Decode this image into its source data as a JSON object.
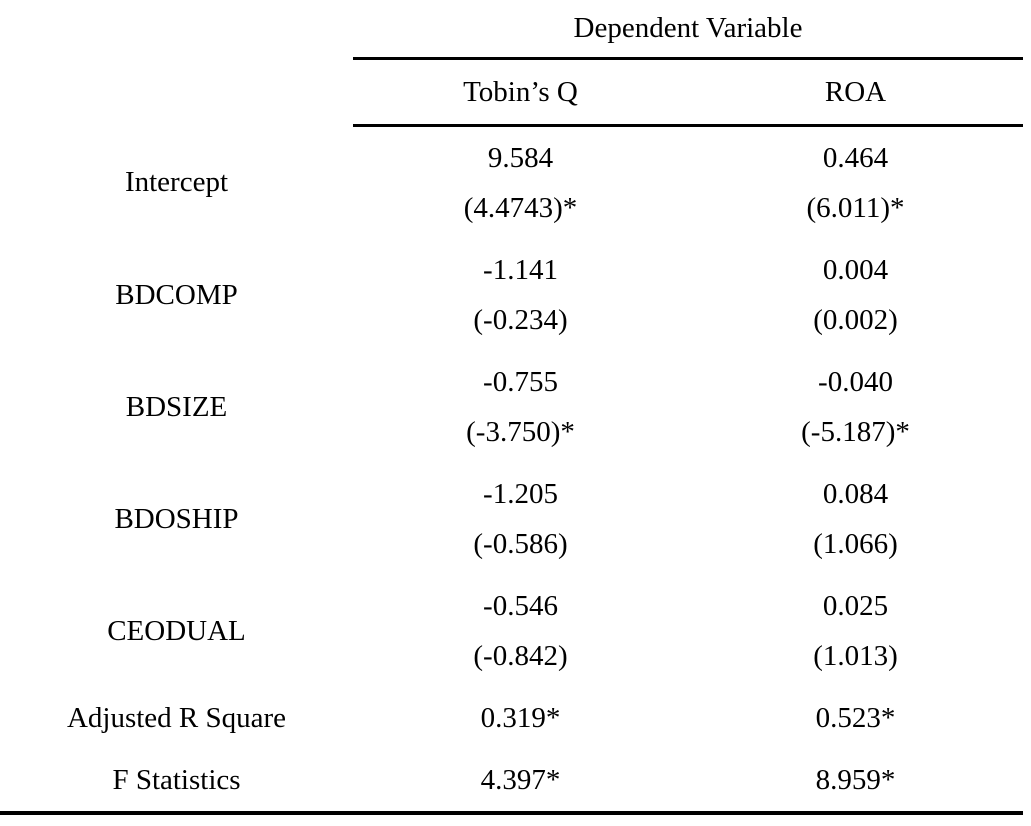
{
  "table": {
    "header": {
      "group_label": "Dependent Variable",
      "columns": [
        "Tobin’s Q",
        "ROA"
      ]
    },
    "rows": [
      {
        "label": "Intercept",
        "cells": [
          {
            "coef": "9.584",
            "tstat": "(4.4743)*"
          },
          {
            "coef": "0.464",
            "tstat": "(6.011)*"
          }
        ]
      },
      {
        "label": "BDCOMP",
        "cells": [
          {
            "coef": "-1.141",
            "tstat": "(-0.234)"
          },
          {
            "coef": "0.004",
            "tstat": "(0.002)"
          }
        ]
      },
      {
        "label": "BDSIZE",
        "cells": [
          {
            "coef": "-0.755",
            "tstat": "(-3.750)*"
          },
          {
            "coef": "-0.040",
            "tstat": "(-5.187)*"
          }
        ]
      },
      {
        "label": "BDOSHIP",
        "cells": [
          {
            "coef": "-1.205",
            "tstat": "(-0.586)"
          },
          {
            "coef": "0.084",
            "tstat": "(1.066)"
          }
        ]
      },
      {
        "label": "CEODUAL",
        "cells": [
          {
            "coef": "-0.546",
            "tstat": "(-0.842)"
          },
          {
            "coef": "0.025",
            "tstat": "(1.013)"
          }
        ]
      }
    ],
    "summary": [
      {
        "label": "Adjusted R Square",
        "values": [
          "0.319*",
          "0.523*"
        ]
      },
      {
        "label": "F Statistics",
        "values": [
          "4.397*",
          "8.959*"
        ]
      }
    ],
    "colors": {
      "text": "#000000",
      "background": "#ffffff",
      "rule": "#000000"
    }
  }
}
